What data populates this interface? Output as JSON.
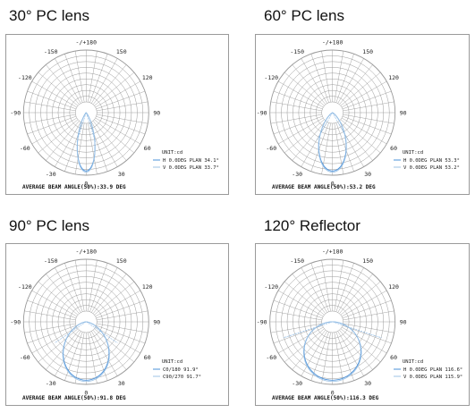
{
  "polar_angle_labels": [
    "-/+180",
    "-150",
    "150",
    "-120",
    "120",
    "-90",
    "90",
    "-60",
    "60",
    "-30",
    "30",
    "0"
  ],
  "unit_text": "UNIT:cd",
  "colors": {
    "curve_h": "#4a90d9",
    "curve_v": "#9dc3e6",
    "grid": "#999999",
    "frame": "#9a9a9a"
  },
  "chart_data": [
    {
      "type": "polar",
      "title": "30° PC lens",
      "legend": [
        {
          "name": "H 0.0DEG PLAN 34.1°",
          "color": "#4a90d9"
        },
        {
          "name": "V 0.0DEG PLAN 33.7°",
          "color": "#9dc3e6"
        }
      ],
      "average_text": "AVERAGE BEAM ANGLE(50%):33.9 DEG",
      "beam_angle_deg": 33.9,
      "series": [
        {
          "name": "H 0.0DEG PLAN 34.1°",
          "beam_angle_deg": 34.1
        },
        {
          "name": "V 0.0DEG PLAN 33.7°",
          "beam_angle_deg": 33.7
        }
      ]
    },
    {
      "type": "polar",
      "title": "60° PC lens",
      "legend": [
        {
          "name": "H 0.0DEG PLAN 53.3°",
          "color": "#4a90d9"
        },
        {
          "name": "V 0.0DEG PLAN 53.2°",
          "color": "#9dc3e6"
        }
      ],
      "average_text": "AVERAGE BEAM ANGLE(50%):53.2 DEG",
      "beam_angle_deg": 53.2,
      "series": [
        {
          "name": "H 0.0DEG PLAN 53.3°",
          "beam_angle_deg": 53.3
        },
        {
          "name": "V 0.0DEG PLAN 53.2°",
          "beam_angle_deg": 53.2
        }
      ]
    },
    {
      "type": "polar",
      "title": "90° PC lens",
      "legend": [
        {
          "name": "C0/180 91.9°",
          "color": "#4a90d9"
        },
        {
          "name": "C90/270 91.7°",
          "color": "#9dc3e6"
        }
      ],
      "average_text": "AVERAGE BEAM ANGLE(50%):91.8 DEG",
      "beam_angle_deg": 91.8,
      "series": [
        {
          "name": "C0/180 91.9°",
          "beam_angle_deg": 91.9
        },
        {
          "name": "C90/270 91.7°",
          "beam_angle_deg": 91.7
        }
      ]
    },
    {
      "type": "polar",
      "title": "120°  Reflector",
      "legend": [
        {
          "name": "H 0.0DEG PLAN 116.6°",
          "color": "#4a90d9"
        },
        {
          "name": "V 0.0DEG PLAN 115.9°",
          "color": "#9dc3e6"
        }
      ],
      "average_text": "AVERAGE BEAM ANGLE(50%):116.3 DEG",
      "beam_angle_deg": 116.3,
      "series": [
        {
          "name": "H 0.0DEG PLAN 116.6°",
          "beam_angle_deg": 116.6
        },
        {
          "name": "V 0.0DEG PLAN 115.9°",
          "beam_angle_deg": 115.9
        }
      ]
    }
  ]
}
